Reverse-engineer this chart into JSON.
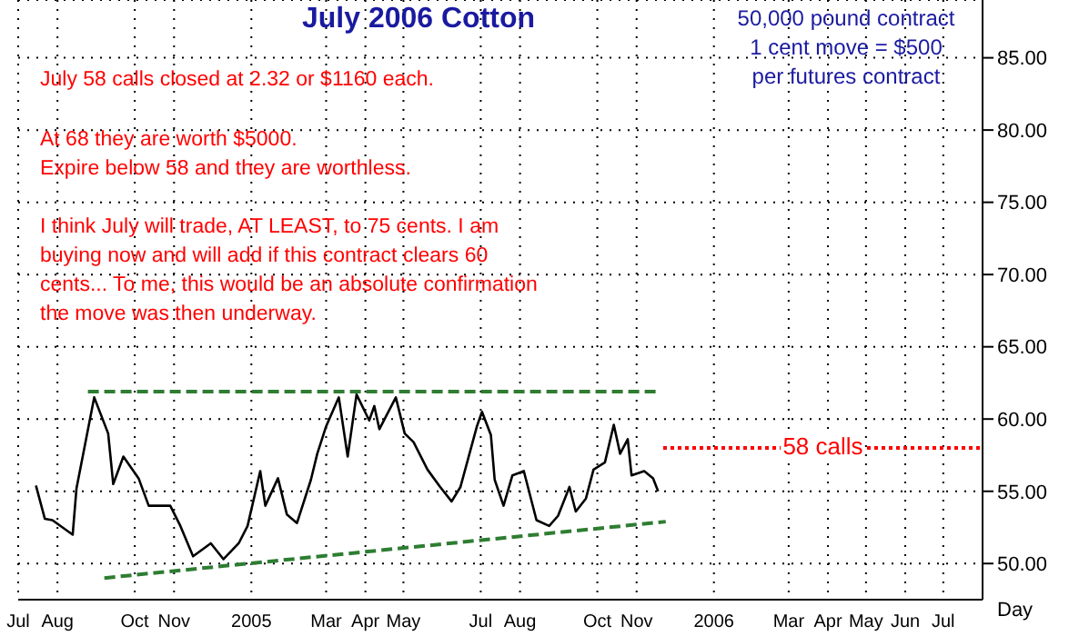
{
  "chart_data": {
    "type": "line",
    "title": "July 2006 Cotton",
    "xlabel": "Day",
    "annotations": [
      "50,000 pound contract\n1 cent move = $500\nper futures contract",
      "July 58 calls closed at 2.32 or $1160 each.",
      "At 68 they are worth $5000.\nExpire below 58 and they are worthless.",
      "I think July will trade, AT LEAST, to 75 cents. I am buying now and will add if this contract clears 60 cents... To me, this would be an absolute confirmation the move was then underway."
    ],
    "series": [
      {
        "color": "#000000",
        "line_style": "solid",
        "x": [
          "2004-07-15",
          "2004-07-22",
          "2004-07-28",
          "2004-08-13",
          "2004-08-16",
          "2004-08-30",
          "2004-09-10",
          "2004-09-14",
          "2004-09-22",
          "2004-10-04",
          "2004-10-12",
          "2004-10-29",
          "2004-11-06",
          "2004-11-16",
          "2004-11-30",
          "2004-12-10",
          "2004-12-22",
          "2004-12-29",
          "2005-01-08",
          "2005-01-12",
          "2005-01-22",
          "2005-01-29",
          "2005-02-06",
          "2005-02-17",
          "2005-02-22",
          "2005-03-01",
          "2005-03-11",
          "2005-03-18",
          "2005-03-25",
          "2005-04-04",
          "2005-04-08",
          "2005-04-12",
          "2005-04-25",
          "2005-05-02",
          "2005-05-09",
          "2005-05-20",
          "2005-05-30",
          "2005-06-08",
          "2005-06-15",
          "2005-06-28",
          "2005-07-02",
          "2005-07-09",
          "2005-07-12",
          "2005-07-19",
          "2005-07-26",
          "2005-08-04",
          "2005-08-14",
          "2005-08-24",
          "2005-08-31",
          "2005-09-09",
          "2005-09-14",
          "2005-09-22",
          "2005-09-28",
          "2005-10-07",
          "2005-10-14",
          "2005-10-19",
          "2005-10-25",
          "2005-10-28",
          "2005-11-07",
          "2005-11-14",
          "2005-11-18"
        ],
        "values": [
          55.4,
          53.1,
          53,
          52,
          55.2,
          61.5,
          59,
          55.5,
          57.4,
          55.9,
          54,
          54,
          52.6,
          50.5,
          51.4,
          50.3,
          51.4,
          52.6,
          56.4,
          54,
          55.9,
          53.4,
          52.8,
          55.8,
          57.6,
          59.5,
          61.5,
          57.4,
          61.7,
          59.9,
          60.9,
          59.3,
          61.5,
          59,
          58.4,
          56.5,
          55.3,
          54.3,
          55.3,
          59.5,
          60.5,
          58.9,
          55.8,
          54,
          56.1,
          56.4,
          53,
          52.6,
          53.3,
          55.3,
          53.6,
          54.5,
          56.5,
          57,
          59.6,
          57.6,
          58.6,
          56.1,
          56.4,
          55.9,
          55
        ]
      },
      {
        "color": "#2e7d32",
        "line_style": "dashed",
        "x": [
          "2004-08-25",
          "2005-11-20"
        ],
        "values": [
          61.9,
          61.9
        ]
      },
      {
        "color": "#2e7d32",
        "line_style": "dashed",
        "x": [
          "2004-09-07",
          "2005-11-24"
        ],
        "values": [
          49,
          52.9
        ]
      },
      {
        "name": "58 calls",
        "color": "#ff0000",
        "line_style": "dotted",
        "x": [
          "2005-11-22",
          "2006-08-01"
        ],
        "values": [
          58,
          58
        ]
      }
    ],
    "xlim": [
      "2004-07-01",
      "2006-08-01"
    ],
    "xticks": [
      {
        "value": "2004-07-01",
        "label": "Jul"
      },
      {
        "value": "2004-08-01",
        "label": "Aug"
      },
      {
        "value": "2004-10-01",
        "label": "Oct"
      },
      {
        "value": "2004-11-01",
        "label": "Nov"
      },
      {
        "value": "2005-01-01",
        "label": "2005"
      },
      {
        "value": "2005-03-01",
        "label": "Mar"
      },
      {
        "value": "2005-04-01",
        "label": "Apr"
      },
      {
        "value": "2005-05-01",
        "label": "May"
      },
      {
        "value": "2005-07-01",
        "label": "Jul"
      },
      {
        "value": "2005-08-01",
        "label": "Aug"
      },
      {
        "value": "2005-10-01",
        "label": "Oct"
      },
      {
        "value": "2005-11-01",
        "label": "Nov"
      },
      {
        "value": "2006-01-01",
        "label": "2006"
      },
      {
        "value": "2006-03-01",
        "label": "Mar"
      },
      {
        "value": "2006-04-01",
        "label": "Apr"
      },
      {
        "value": "2006-05-01",
        "label": "May"
      },
      {
        "value": "2006-06-01",
        "label": "Jun"
      },
      {
        "value": "2006-07-01",
        "label": "Jul"
      }
    ],
    "ylim": [
      47.5,
      89
    ],
    "yticks": [
      {
        "value": 50,
        "label": "50.00"
      },
      {
        "value": 55,
        "label": "55.00"
      },
      {
        "value": 60,
        "label": "60.00"
      },
      {
        "value": 65,
        "label": "65.00"
      },
      {
        "value": 70,
        "label": "70.00"
      },
      {
        "value": 75,
        "label": "75.00"
      },
      {
        "value": 80,
        "label": "80.00"
      },
      {
        "value": 85,
        "label": "85.00"
      }
    ],
    "grid": true,
    "legend": false,
    "marker": "none"
  }
}
